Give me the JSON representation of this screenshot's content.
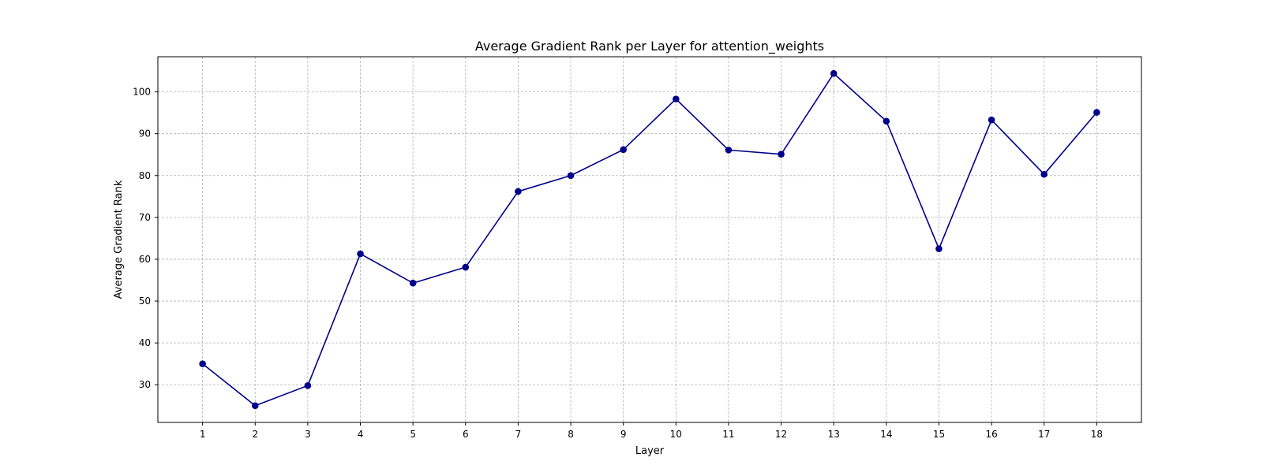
{
  "chart_data": {
    "type": "line",
    "title": "Average Gradient Rank per Layer for attention_weights",
    "xlabel": "Layer",
    "ylabel": "Average Gradient Rank",
    "x": [
      1,
      2,
      3,
      4,
      5,
      6,
      7,
      8,
      9,
      10,
      11,
      12,
      13,
      14,
      15,
      16,
      17,
      18
    ],
    "series": [
      {
        "values": [
          35.0,
          25.0,
          29.8,
          61.3,
          54.3,
          58.1,
          76.2,
          80.0,
          86.2,
          98.3,
          86.1,
          85.1,
          104.4,
          93.0,
          62.5,
          93.3,
          80.3,
          95.1
        ],
        "color": "#00008b",
        "marker": "circle"
      }
    ],
    "xticks": [
      "1",
      "2",
      "3",
      "4",
      "5",
      "6",
      "7",
      "8",
      "9",
      "10",
      "11",
      "12",
      "13",
      "14",
      "15",
      "16",
      "17",
      "18"
    ],
    "yticks": [
      30,
      40,
      50,
      60,
      70,
      80,
      90,
      100
    ],
    "xlim": [
      0.15,
      18.85
    ],
    "ylim": [
      21.0,
      108.4
    ],
    "grid": true,
    "legend": "none"
  }
}
